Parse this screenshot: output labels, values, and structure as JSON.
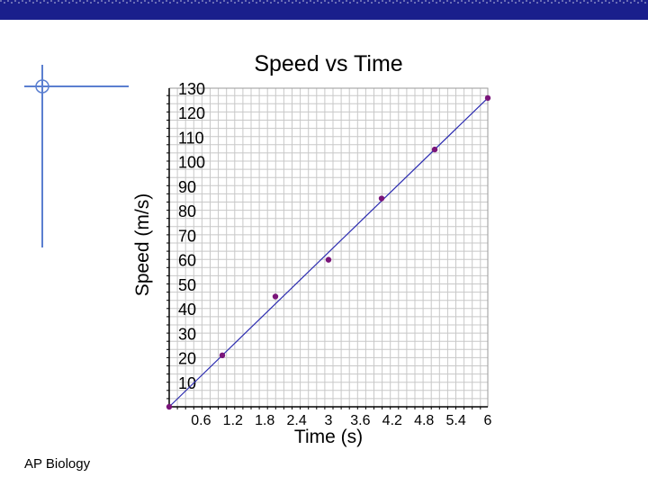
{
  "colors": {
    "top_bar": "#1a1f8c",
    "accent_line": "#5b7fd0",
    "trend_line": "#2b2bb0",
    "point": "#7a157a",
    "grid": "#c8c8c8",
    "axis": "#000000"
  },
  "footer": {
    "text": "AP Biology"
  },
  "chart_data": {
    "type": "scatter",
    "title": "Speed vs Time",
    "xlabel": "Time (s)",
    "ylabel": "Speed (m/s)",
    "xlim": [
      0,
      6
    ],
    "ylim": [
      0,
      130
    ],
    "x_ticks": [
      0.6,
      1.2,
      1.8,
      2.4,
      3,
      3.6,
      4.2,
      4.8,
      5.4,
      6
    ],
    "x_tick_labels": [
      "0.6",
      "1.2",
      "1.8",
      "2.4",
      "3",
      "3.6",
      "4.2",
      "4.8",
      "5.4",
      "6"
    ],
    "y_ticks": [
      10,
      20,
      30,
      40,
      50,
      60,
      70,
      80,
      90,
      100,
      110,
      120,
      130
    ],
    "y_tick_labels": [
      "10",
      "20",
      "30",
      "40",
      "50",
      "60",
      "70",
      "80",
      "90",
      "100",
      "110",
      "120",
      "130"
    ],
    "grid": true,
    "series": [
      {
        "points": [
          {
            "x": 0,
            "y": 0
          },
          {
            "x": 1,
            "y": 21
          },
          {
            "x": 2,
            "y": 45
          },
          {
            "x": 3,
            "y": 60
          },
          {
            "x": 4,
            "y": 85
          },
          {
            "x": 5,
            "y": 105
          },
          {
            "x": 6,
            "y": 126
          }
        ]
      }
    ],
    "trend_line": {
      "x": [
        0,
        6
      ],
      "y": [
        0,
        126
      ]
    }
  }
}
